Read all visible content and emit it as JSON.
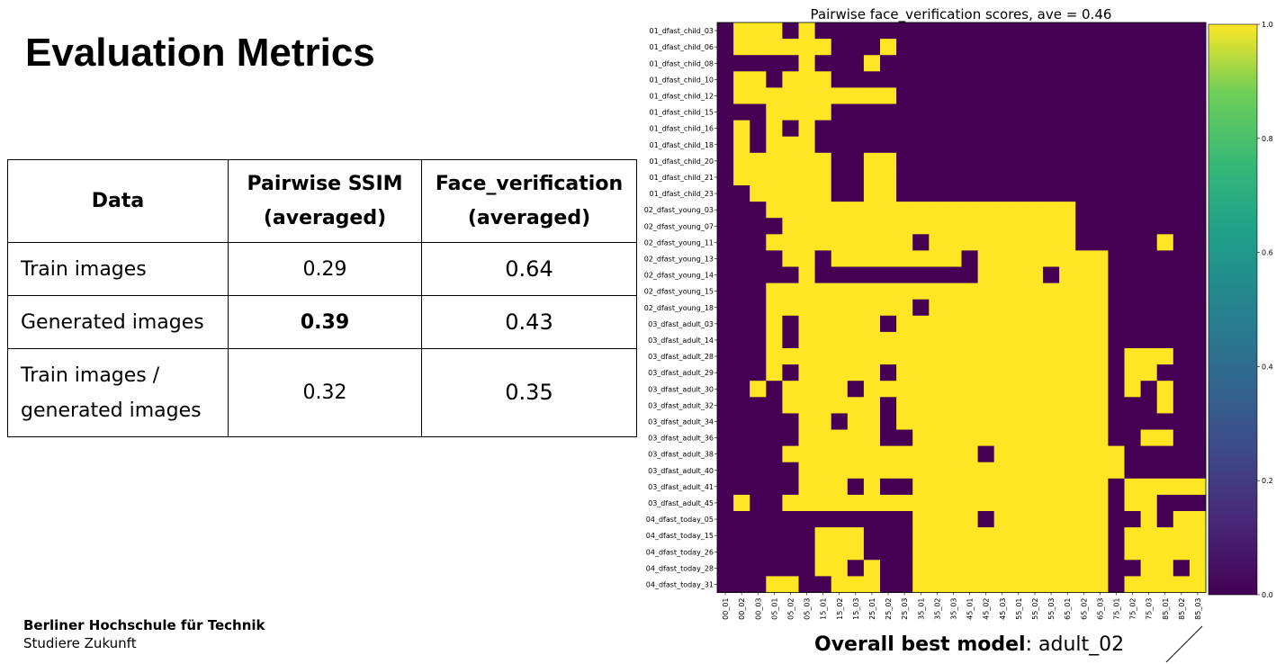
{
  "slide": {
    "title": "Evaluation Metrics",
    "footer_org": "Berliner Hochschule für Technik",
    "footer_tagline": "Studiere Zukunft",
    "best_model_label": "Overall best model",
    "best_model_value": ": adult_02"
  },
  "table": {
    "headers": [
      "Data",
      "Pairwise SSIM\n(averaged)",
      "Face_verification\n(averaged)"
    ],
    "header_lines": [
      [
        "Data"
      ],
      [
        "Pairwise SSIM",
        "(averaged)"
      ],
      [
        "Face_verification",
        "(averaged)"
      ]
    ],
    "rows": [
      {
        "label": [
          "Train images"
        ],
        "ssim": "0.29",
        "face": "0.64",
        "ssim_bold": false
      },
      {
        "label": [
          "Generated images"
        ],
        "ssim": "0.39",
        "face": "0.43",
        "ssim_bold": true
      },
      {
        "label": [
          "Train images /",
          "generated images"
        ],
        "ssim": "0.32",
        "face": "0.35",
        "ssim_bold": false
      }
    ]
  },
  "chart_data": {
    "type": "heatmap",
    "title": "Pairwise face_verification scores, ave = 0.46",
    "rows": [
      "01_dfast_child_03",
      "01_dfast_child_06",
      "01_dfast_child_08",
      "01_dfast_child_10",
      "01_dfast_child_12",
      "01_dfast_child_15",
      "01_dfast_child_16",
      "01_dfast_child_18",
      "01_dfast_child_20",
      "01_dfast_child_21",
      "01_dfast_child_23",
      "02_dfast_young_03",
      "02_dfast_young_07",
      "02_dfast_young_11",
      "02_dfast_young_13",
      "02_dfast_young_14",
      "02_dfast_young_15",
      "02_dfast_young_18",
      "03_dfast_adult_03",
      "03_dfast_adult_14",
      "03_dfast_adult_28",
      "03_dfast_adult_29",
      "03_dfast_adult_30",
      "03_dfast_adult_32",
      "03_dfast_adult_34",
      "03_dfast_adult_36",
      "03_dfast_adult_38",
      "03_dfast_adult_40",
      "03_dfast_adult_41",
      "03_dfast_adult_45",
      "04_dfast_today_05",
      "04_dfast_today_15",
      "04_dfast_today_26",
      "04_dfast_today_28",
      "04_dfast_today_31"
    ],
    "cols": [
      "00_01",
      "00_02",
      "00_03",
      "05_01",
      "05_02",
      "05_03",
      "15_01",
      "15_02",
      "15_03",
      "25_01",
      "25_02",
      "25_03",
      "35_01",
      "35_02",
      "35_03",
      "45_01",
      "45_02",
      "45_03",
      "55_01",
      "55_02",
      "55_03",
      "65_01",
      "65_02",
      "65_03",
      "75_01",
      "75_02",
      "75_03",
      "85_01",
      "85_02",
      "85_03"
    ],
    "values": [
      "011101000000000000000000000000",
      "011111100010000000000000000000",
      "000001000100000000000000000000",
      "011011100000000000000000000000",
      "011111111110000000000000000000",
      "000111100000000000000000000000",
      "010101000000000000000000000000",
      "010111000000000000000000000000",
      "011111100110000000000000000000",
      "011111100110000000000000000000",
      "001111100110000000000000000000",
      "000111111111111111111100000000",
      "000011111111111111111100000000",
      "000111111111011111111100000100",
      "000011011111111011111111000000",
      "000001000000000011110111000000",
      "000111111111111111111111000000",
      "000111111111011111111111000000",
      "000101111101111111111111000000",
      "000101111111111111111111000000",
      "000111111111111111111111011100",
      "000101111101111111111111011000",
      "001011110111111111111111010100",
      "000011111101111111111111000100",
      "000001101101111111111111000000",
      "000001111100111111111111001100",
      "000011111111111101111111100000",
      "000001111111111111111111100000",
      "000001110100111111111111011111",
      "010011111111111111111111011000",
      "000000000000111101111111001011",
      "000000111000111111111111011111",
      "000000111000111111111111011111",
      "000000110100111111111111001101",
      "000110011100111111111111011111"
    ],
    "colorbar": {
      "min": 0.0,
      "max": 1.0,
      "ticks": [
        "0.0",
        "0.2",
        "0.4",
        "0.6",
        "0.8",
        "1.0"
      ]
    },
    "colors": {
      "low": "#440154",
      "high": "#fde725"
    }
  }
}
